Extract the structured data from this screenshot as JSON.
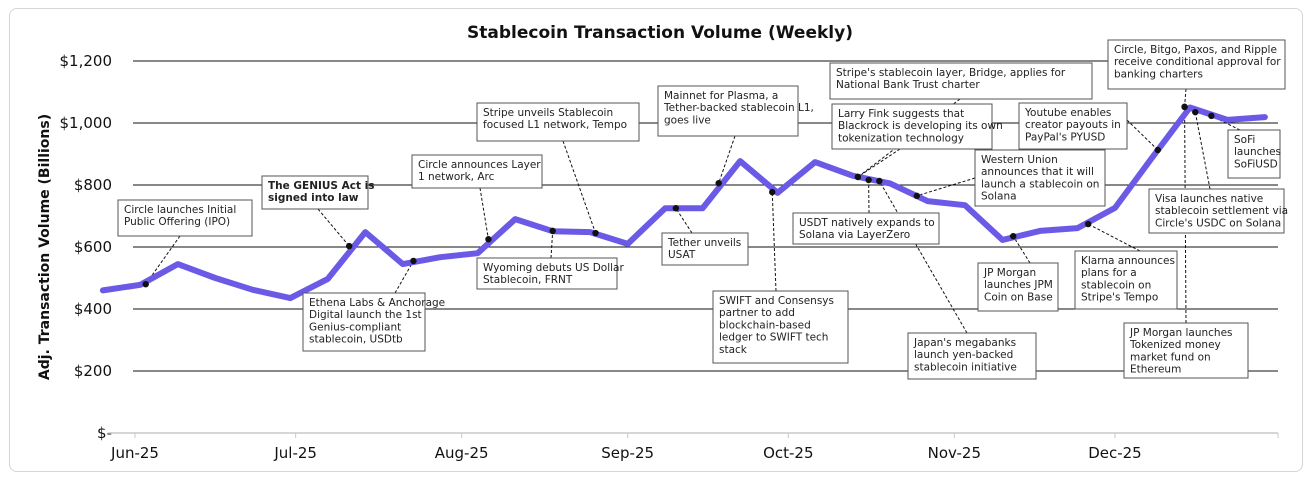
{
  "chart_data": {
    "type": "line",
    "title": "Stablecoin Transaction Volume (Weekly)",
    "xlabel": "",
    "ylabel": "Adj. Transaction Volume (Billions)",
    "ylim": [
      0,
      1200
    ],
    "grid": "horizontal",
    "line_color": "#6a5ae6",
    "y_ticks": [
      {
        "value": 0,
        "label": "$-"
      },
      {
        "value": 200,
        "label": "$200"
      },
      {
        "value": 400,
        "label": "$400"
      },
      {
        "value": 600,
        "label": "$600"
      },
      {
        "value": 800,
        "label": "$800"
      },
      {
        "value": 1000,
        "label": "$1,000"
      },
      {
        "value": 1200,
        "label": "$1,200"
      }
    ],
    "x_ticks": [
      {
        "date": "2025-06-01",
        "label": "Jun-25"
      },
      {
        "date": "2025-07-01",
        "label": "Jul-25"
      },
      {
        "date": "2025-08-01",
        "label": "Aug-25"
      },
      {
        "date": "2025-09-01",
        "label": "Sep-25"
      },
      {
        "date": "2025-10-01",
        "label": "Oct-25"
      },
      {
        "date": "2025-11-01",
        "label": "Nov-25"
      },
      {
        "date": "2025-12-01",
        "label": "Dec-25"
      }
    ],
    "x": [
      "2025-05-26",
      "2025-06-02",
      "2025-06-09",
      "2025-06-16",
      "2025-06-23",
      "2025-06-30",
      "2025-07-07",
      "2025-07-14",
      "2025-07-21",
      "2025-07-28",
      "2025-08-04",
      "2025-08-11",
      "2025-08-18",
      "2025-08-25",
      "2025-09-01",
      "2025-09-08",
      "2025-09-15",
      "2025-09-22",
      "2025-09-29",
      "2025-10-06",
      "2025-10-13",
      "2025-10-20",
      "2025-10-27",
      "2025-11-03",
      "2025-11-10",
      "2025-11-17",
      "2025-11-24",
      "2025-12-01",
      "2025-12-08",
      "2025-12-15",
      "2025-12-22",
      "2025-12-29"
    ],
    "values": [
      460,
      478,
      545,
      500,
      462,
      435,
      497,
      648,
      545,
      567,
      580,
      690,
      651,
      648,
      610,
      725,
      725,
      877,
      775,
      874,
      830,
      805,
      748,
      735,
      623,
      652,
      661,
      726,
      890,
      1050,
      1010,
      1019
    ],
    "annotations": [
      {
        "date": "2025-06-03",
        "value": 480,
        "lines": [
          "Circle launches Initial",
          "Public Offering (IPO)"
        ]
      },
      {
        "date": "2025-07-11",
        "value": 603,
        "bold": true,
        "lines": [
          "The GENIUS Act is",
          "signed into law"
        ]
      },
      {
        "date": "2025-07-23",
        "value": 555,
        "lines": [
          "Ethena Labs & Anchorage",
          "Digital launch the 1st",
          "Genius-compliant",
          "stablecoin, USDtb"
        ]
      },
      {
        "date": "2025-08-06",
        "value": 625,
        "lines": [
          "Circle announces Layer",
          "1 network, Arc"
        ]
      },
      {
        "date": "2025-08-18",
        "value": 652,
        "lines": [
          "Wyoming debuts US Dollar",
          "Stablecoin, FRNT"
        ]
      },
      {
        "date": "2025-08-26",
        "value": 645,
        "lines": [
          "Stripe unveils Stablecoin",
          "focused L1 network, Tempo"
        ]
      },
      {
        "date": "2025-09-10",
        "value": 725,
        "lines": [
          "Tether unveils",
          "USAT"
        ]
      },
      {
        "date": "2025-09-18",
        "value": 806,
        "lines": [
          "Mainnet for Plasma, a",
          "Tether-backed stablecoin L1,",
          "goes live"
        ]
      },
      {
        "date": "2025-09-28",
        "value": 777,
        "lines": [
          "SWIFT and Consensys",
          "partner to add",
          "blockchain-based",
          "ledger to SWIFT tech",
          "stack"
        ]
      },
      {
        "date": "2025-10-14",
        "value": 826,
        "lines": [
          "Stripe's stablecoin layer, Bridge, applies for",
          "National Bank Trust charter"
        ]
      },
      {
        "date": "2025-10-14",
        "value": 826,
        "lines": [
          "Larry Fink suggests that",
          "Blackrock is developing its own",
          "tokenization technology"
        ]
      },
      {
        "date": "2025-10-16",
        "value": 816,
        "lines": [
          "USDT natively expands to",
          "Solana via LayerZero"
        ]
      },
      {
        "date": "2025-10-25",
        "value": 765,
        "lines": [
          "Western Union",
          "announces that it will",
          "launch a stablecoin on",
          "Solana"
        ]
      },
      {
        "date": "2025-10-18",
        "value": 813,
        "lines": [
          "Japan's megabanks",
          "launch yen-backed",
          "stablecoin initiative"
        ]
      },
      {
        "date": "2025-11-12",
        "value": 635,
        "lines": [
          "JP Morgan",
          "launches JPM",
          "Coin on Base"
        ]
      },
      {
        "date": "2025-12-09",
        "value": 913,
        "lines": [
          "Youtube enables",
          "creator payouts in",
          "PayPal's PYUSD"
        ]
      },
      {
        "date": "2025-11-26",
        "value": 674,
        "lines": [
          "Klarna announces",
          "plans for a",
          "stablecoin on",
          "Stripe's Tempo"
        ]
      },
      {
        "date": "2025-12-14",
        "value": 1052,
        "lines": [
          "Circle, Bitgo, Paxos, and Ripple",
          "receive conditional approval for",
          "banking charters"
        ]
      },
      {
        "date": "2025-12-19",
        "value": 1023,
        "lines": [
          "SoFi",
          "launches",
          "SoFiUSD"
        ]
      },
      {
        "date": "2025-12-16",
        "value": 1035,
        "lines": [
          "Visa launches native",
          "stablecoin settlement via",
          "Circle's USDC on Solana"
        ]
      },
      {
        "date": "2025-12-14",
        "value": 1052,
        "lines": [
          "JP Morgan launches",
          "Tokenized money",
          "market fund on",
          "Ethereum"
        ]
      }
    ]
  }
}
